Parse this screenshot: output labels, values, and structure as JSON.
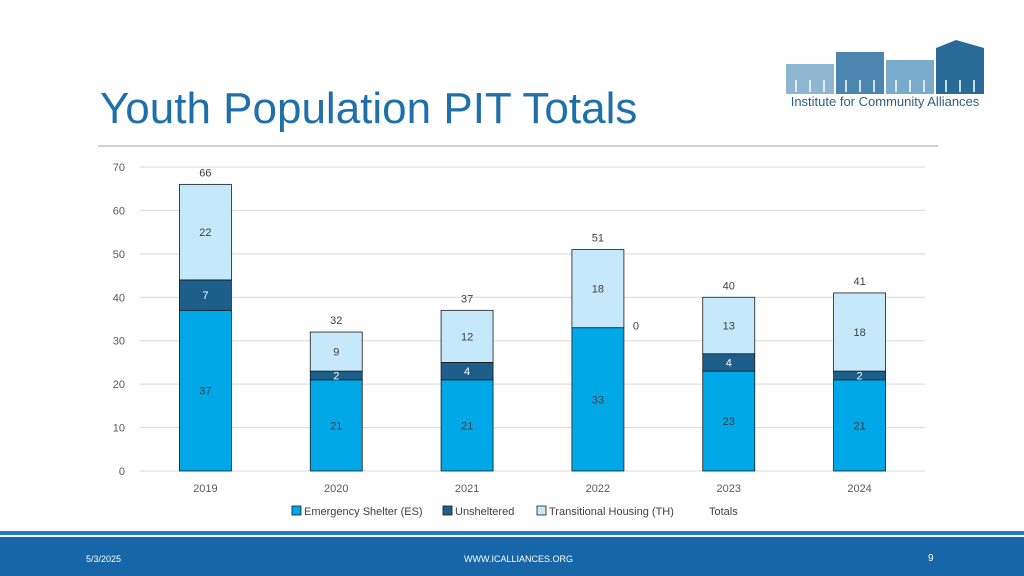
{
  "slide": {
    "title": "Youth Population PIT Totals",
    "logo_text": "Institute for Community Alliances",
    "footer_date": "5/3/2025",
    "footer_url": "WWW.ICALLIANCES.ORG",
    "page_number": "9"
  },
  "colors": {
    "es": "#00a8e8",
    "unsheltered": "#1d5f8a",
    "th": "#c5e9fa",
    "title": "#1f6fa8"
  },
  "chart_data": {
    "type": "bar",
    "stacked": true,
    "title": "",
    "xlabel": "",
    "ylabel": "",
    "ylim": [
      0,
      70
    ],
    "yticks": [
      0,
      10,
      20,
      30,
      40,
      50,
      60,
      70
    ],
    "categories": [
      "2019",
      "2020",
      "2021",
      "2022",
      "2023",
      "2024"
    ],
    "series": [
      {
        "name": "Emergency Shelter (ES)",
        "values": [
          37,
          21,
          21,
          33,
          23,
          21
        ]
      },
      {
        "name": "Unsheltered",
        "values": [
          7,
          2,
          4,
          0,
          4,
          2
        ]
      },
      {
        "name": "Transitional Housing (TH)",
        "values": [
          22,
          9,
          12,
          18,
          13,
          18
        ]
      }
    ],
    "totals_label": "Totals",
    "totals": [
      66,
      32,
      37,
      51,
      40,
      41
    ],
    "legend_position": "bottom",
    "grid": true
  }
}
